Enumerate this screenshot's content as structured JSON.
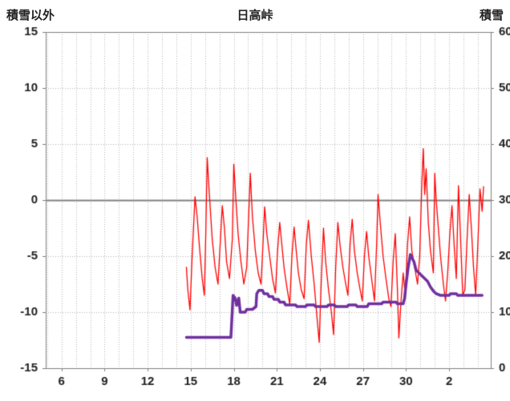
{
  "chart_data": {
    "type": "line",
    "title": "日高峠",
    "left_axis_title": "積雪以外",
    "right_axis_title": "積雪",
    "x_range": [
      4.9,
      35.9
    ],
    "x_ticks": [
      {
        "day": 6,
        "label": "6"
      },
      {
        "day": 9,
        "label": "9"
      },
      {
        "day": 12,
        "label": "12"
      },
      {
        "day": 15,
        "label": "15"
      },
      {
        "day": 18,
        "label": "18"
      },
      {
        "day": 21,
        "label": "21"
      },
      {
        "day": 24,
        "label": "24"
      },
      {
        "day": 27,
        "label": "27"
      },
      {
        "day": 30,
        "label": "30"
      },
      {
        "day": 33,
        "label": "2"
      }
    ],
    "x_minor_grid_step": 1,
    "y_left": {
      "range": [
        -15,
        15
      ],
      "ticks": [
        15,
        10,
        5,
        0,
        -5,
        -10,
        -15
      ]
    },
    "y_right": {
      "range": [
        0,
        60
      ],
      "ticks": [
        60,
        50,
        40,
        30,
        20,
        10,
        0
      ]
    },
    "colors": {
      "grid": "#b3b3b3",
      "zero_line": "#808080",
      "border": "#808080",
      "labels": "#222222",
      "temperature": "#ff0000",
      "snow": "#7030a0"
    },
    "legend": "none",
    "series": [
      {
        "name": "temperature",
        "axis": "left",
        "color": "#ff0000",
        "width": 1.3,
        "points": [
          [
            14.7,
            -6.0
          ],
          [
            14.8,
            -8.0
          ],
          [
            14.95,
            -9.8
          ],
          [
            15.1,
            -5.0
          ],
          [
            15.3,
            0.3
          ],
          [
            15.45,
            -1.5
          ],
          [
            15.6,
            -4.0
          ],
          [
            15.8,
            -7.0
          ],
          [
            15.95,
            -8.5
          ],
          [
            16.05,
            -3.0
          ],
          [
            16.15,
            3.8
          ],
          [
            16.3,
            0.5
          ],
          [
            16.5,
            -3.5
          ],
          [
            16.7,
            -6.0
          ],
          [
            16.9,
            -7.5
          ],
          [
            17.05,
            -4.0
          ],
          [
            17.2,
            -0.5
          ],
          [
            17.35,
            -2.5
          ],
          [
            17.5,
            -5.5
          ],
          [
            17.7,
            -7.0
          ],
          [
            17.9,
            -3.5
          ],
          [
            18.0,
            3.2
          ],
          [
            18.15,
            0.0
          ],
          [
            18.3,
            -3.0
          ],
          [
            18.5,
            -5.5
          ],
          [
            18.7,
            -7.5
          ],
          [
            18.9,
            -6.0
          ],
          [
            19.05,
            -1.0
          ],
          [
            19.15,
            2.4
          ],
          [
            19.3,
            -1.5
          ],
          [
            19.5,
            -4.5
          ],
          [
            19.7,
            -6.5
          ],
          [
            19.9,
            -7.5
          ],
          [
            20.05,
            -3.5
          ],
          [
            20.15,
            -0.6
          ],
          [
            20.3,
            -3.0
          ],
          [
            20.5,
            -5.0
          ],
          [
            20.7,
            -7.0
          ],
          [
            20.9,
            -8.3
          ],
          [
            21.05,
            -4.5
          ],
          [
            21.2,
            -2.0
          ],
          [
            21.35,
            -4.0
          ],
          [
            21.5,
            -6.0
          ],
          [
            21.7,
            -7.8
          ],
          [
            21.9,
            -9.3
          ],
          [
            22.05,
            -5.0
          ],
          [
            22.2,
            -2.4
          ],
          [
            22.35,
            -4.5
          ],
          [
            22.5,
            -6.5
          ],
          [
            22.7,
            -8.0
          ],
          [
            22.9,
            -8.8
          ],
          [
            23.05,
            -4.0
          ],
          [
            23.2,
            -1.8
          ],
          [
            23.4,
            -5.0
          ],
          [
            23.6,
            -7.5
          ],
          [
            23.8,
            -10.5
          ],
          [
            23.95,
            -12.7
          ],
          [
            24.1,
            -7.0
          ],
          [
            24.25,
            -2.5
          ],
          [
            24.4,
            -5.5
          ],
          [
            24.6,
            -8.0
          ],
          [
            24.8,
            -10.0
          ],
          [
            24.95,
            -12.0
          ],
          [
            25.1,
            -6.0
          ],
          [
            25.25,
            -2.0
          ],
          [
            25.4,
            -4.0
          ],
          [
            25.6,
            -6.0
          ],
          [
            25.8,
            -7.5
          ],
          [
            25.95,
            -8.5
          ],
          [
            26.1,
            -4.0
          ],
          [
            26.25,
            -1.7
          ],
          [
            26.4,
            -4.5
          ],
          [
            26.6,
            -6.5
          ],
          [
            26.8,
            -8.0
          ],
          [
            26.95,
            -9.0
          ],
          [
            27.1,
            -5.0
          ],
          [
            27.25,
            -2.8
          ],
          [
            27.4,
            -5.0
          ],
          [
            27.6,
            -7.0
          ],
          [
            27.8,
            -9.0
          ],
          [
            27.95,
            -4.0
          ],
          [
            28.05,
            0.5
          ],
          [
            28.2,
            -2.0
          ],
          [
            28.4,
            -5.0
          ],
          [
            28.6,
            -7.0
          ],
          [
            28.8,
            -8.8
          ],
          [
            28.95,
            -9.5
          ],
          [
            29.1,
            -5.5
          ],
          [
            29.25,
            -3.0
          ],
          [
            29.4,
            -8.0
          ],
          [
            29.5,
            -12.3
          ],
          [
            29.65,
            -9.0
          ],
          [
            29.8,
            -6.5
          ],
          [
            29.95,
            -8.5
          ],
          [
            30.1,
            -4.0
          ],
          [
            30.25,
            -1.5
          ],
          [
            30.4,
            -4.5
          ],
          [
            30.6,
            -6.0
          ],
          [
            30.8,
            -7.5
          ],
          [
            30.95,
            -5.0
          ],
          [
            31.1,
            1.5
          ],
          [
            31.2,
            4.6
          ],
          [
            31.3,
            0.5
          ],
          [
            31.4,
            2.8
          ],
          [
            31.55,
            -2.0
          ],
          [
            31.7,
            -4.5
          ],
          [
            31.9,
            -6.5
          ],
          [
            32.0,
            2.4
          ],
          [
            32.1,
            0.0
          ],
          [
            32.25,
            -2.5
          ],
          [
            32.4,
            -5.0
          ],
          [
            32.6,
            -7.5
          ],
          [
            32.75,
            -9.0
          ],
          [
            32.9,
            -6.5
          ],
          [
            33.05,
            -3.0
          ],
          [
            33.2,
            -0.5
          ],
          [
            33.35,
            -4.0
          ],
          [
            33.5,
            -7.0
          ],
          [
            33.65,
            1.3
          ],
          [
            33.8,
            -3.5
          ],
          [
            33.95,
            -8.5
          ],
          [
            34.1,
            -8.0
          ],
          [
            34.25,
            -3.5
          ],
          [
            34.4,
            0.5
          ],
          [
            34.55,
            -2.5
          ],
          [
            34.7,
            -6.0
          ],
          [
            34.85,
            -8.5
          ],
          [
            35.0,
            -4.0
          ],
          [
            35.15,
            1.0
          ],
          [
            35.3,
            -1.0
          ],
          [
            35.4,
            1.2
          ]
        ]
      },
      {
        "name": "snow_depth",
        "axis": "right",
        "color": "#7030a0",
        "width": 3.5,
        "points": [
          [
            14.7,
            5.5
          ],
          [
            17.8,
            5.5
          ],
          [
            17.85,
            8.0
          ],
          [
            17.95,
            13.0
          ],
          [
            18.1,
            12.5
          ],
          [
            18.2,
            11.2
          ],
          [
            18.35,
            12.5
          ],
          [
            18.45,
            10.0
          ],
          [
            18.8,
            10.0
          ],
          [
            18.9,
            10.5
          ],
          [
            19.3,
            10.5
          ],
          [
            19.55,
            11.0
          ],
          [
            19.6,
            13.3
          ],
          [
            19.75,
            13.9
          ],
          [
            20.0,
            13.9
          ],
          [
            20.1,
            13.3
          ],
          [
            20.35,
            13.3
          ],
          [
            20.45,
            12.8
          ],
          [
            20.7,
            12.8
          ],
          [
            20.8,
            12.3
          ],
          [
            21.1,
            12.3
          ],
          [
            21.2,
            11.8
          ],
          [
            21.5,
            11.8
          ],
          [
            21.6,
            11.3
          ],
          [
            22.3,
            11.3
          ],
          [
            22.4,
            11.0
          ],
          [
            23.0,
            11.0
          ],
          [
            23.1,
            11.3
          ],
          [
            23.6,
            11.3
          ],
          [
            23.7,
            11.0
          ],
          [
            24.5,
            11.0
          ],
          [
            24.6,
            11.3
          ],
          [
            25.0,
            11.3
          ],
          [
            25.1,
            11.0
          ],
          [
            25.9,
            11.0
          ],
          [
            26.0,
            11.3
          ],
          [
            26.5,
            11.3
          ],
          [
            26.6,
            11.0
          ],
          [
            27.3,
            11.0
          ],
          [
            27.4,
            11.5
          ],
          [
            28.3,
            11.5
          ],
          [
            28.4,
            11.8
          ],
          [
            29.3,
            11.8
          ],
          [
            29.4,
            11.5
          ],
          [
            29.8,
            11.5
          ],
          [
            29.9,
            12.5
          ],
          [
            30.0,
            15.0
          ],
          [
            30.15,
            18.0
          ],
          [
            30.3,
            20.3
          ],
          [
            30.45,
            19.5
          ],
          [
            30.55,
            19.0
          ],
          [
            30.7,
            17.5
          ],
          [
            30.9,
            17.0
          ],
          [
            31.1,
            16.5
          ],
          [
            31.3,
            16.0
          ],
          [
            31.5,
            15.5
          ],
          [
            31.7,
            14.5
          ],
          [
            31.9,
            13.8
          ],
          [
            32.1,
            13.3
          ],
          [
            32.4,
            13.0
          ],
          [
            33.0,
            13.0
          ],
          [
            33.1,
            13.3
          ],
          [
            33.5,
            13.3
          ],
          [
            33.6,
            13.0
          ],
          [
            35.3,
            13.0
          ]
        ]
      }
    ]
  }
}
